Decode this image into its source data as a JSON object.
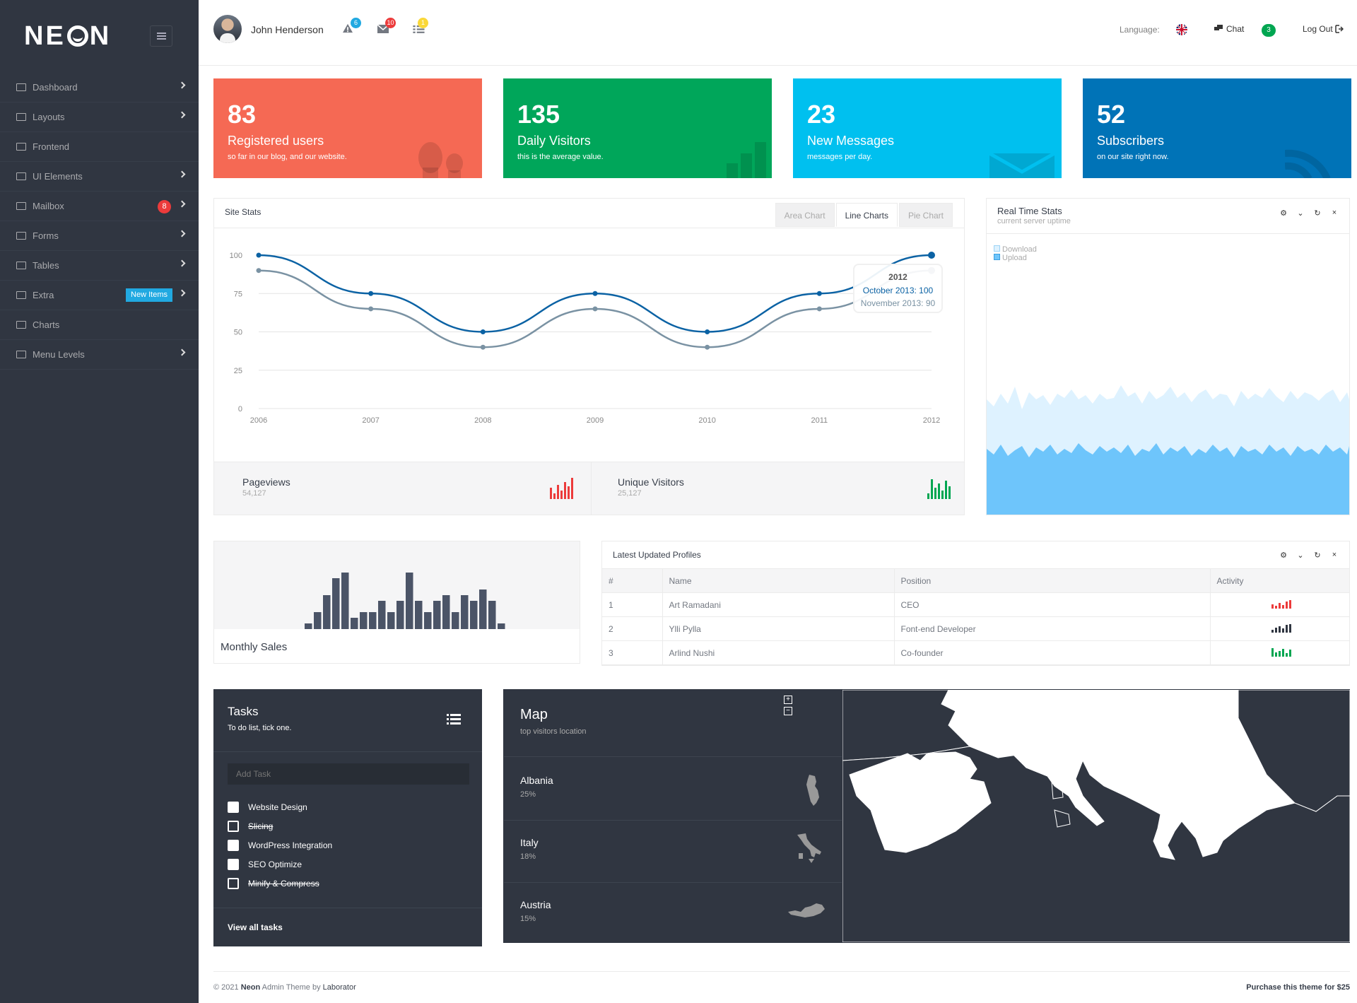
{
  "brand": {
    "name_pre": "NE",
    "name_post": "N"
  },
  "sidebar": {
    "items": [
      {
        "label": "Dashboard",
        "icon": "gauge-icon",
        "chevron": true
      },
      {
        "label": "Layouts",
        "icon": "grid-icon",
        "chevron": true
      },
      {
        "label": "Frontend",
        "icon": "monitor-icon",
        "chevron": false
      },
      {
        "label": "UI Elements",
        "icon": "document-icon",
        "chevron": true
      },
      {
        "label": "Mailbox",
        "icon": "mail-icon",
        "chevron": true,
        "badge": "8"
      },
      {
        "label": "Forms",
        "icon": "form-icon",
        "chevron": true
      },
      {
        "label": "Tables",
        "icon": "table-icon",
        "chevron": true
      },
      {
        "label": "Extra",
        "icon": "bag-icon",
        "chevron": true,
        "tag": "New Items"
      },
      {
        "label": "Charts",
        "icon": "bar-chart-icon",
        "chevron": false
      },
      {
        "label": "Menu Levels",
        "icon": "sitemap-icon",
        "chevron": true
      }
    ]
  },
  "topbar": {
    "user_name": "John Henderson",
    "notifications": [
      {
        "icon": "alert-icon",
        "count": "6",
        "color": "#21a9e1"
      },
      {
        "icon": "envelope-icon",
        "count": "10",
        "color": "#ec3b3b"
      },
      {
        "icon": "list-icon",
        "count": "1",
        "color": "#fad839"
      }
    ],
    "language_label": "Language:",
    "chat_label": "Chat",
    "chat_count": "3",
    "logout_label": "Log Out"
  },
  "tiles": [
    {
      "value": "83",
      "label": "Registered users",
      "sub": "so far in our blog, and our website.",
      "color": "#f56954",
      "icon": "users-icon"
    },
    {
      "value": "135",
      "label": "Daily Visitors",
      "sub": "this is the average value.",
      "color": "#00a65a",
      "icon": "chart-icon"
    },
    {
      "value": "23",
      "label": "New Messages",
      "sub": "messages per day.",
      "color": "#00c0ef",
      "icon": "mail-icon"
    },
    {
      "value": "52",
      "label": "Subscribers",
      "sub": "on our site right now.",
      "color": "#0073b7",
      "icon": "rss-icon"
    }
  ],
  "site_stats": {
    "title": "Site Stats",
    "tabs": [
      "Area Chart",
      "Line Charts",
      "Pie Chart"
    ],
    "active_tab": 1,
    "tooltip": {
      "title": "2012",
      "line1": "October 2013: 100",
      "line2": "November 2013: 90"
    },
    "footer": [
      {
        "label": "Pageviews",
        "value": "54,127",
        "color": "#ec3b3b"
      },
      {
        "label": "Unique Visitors",
        "value": "25,127",
        "color": "#00a651"
      }
    ]
  },
  "chart_data": {
    "type": "line",
    "x": [
      "2006",
      "2007",
      "2008",
      "2009",
      "2010",
      "2011",
      "2012"
    ],
    "series": [
      {
        "name": "October 2013",
        "values": [
          100,
          75,
          50,
          75,
          50,
          75,
          100
        ],
        "color": "#0b62a4"
      },
      {
        "name": "November 2013",
        "values": [
          90,
          65,
          40,
          65,
          40,
          65,
          90
        ],
        "color": "#7a92a3"
      }
    ],
    "yticks": [
      "0",
      "25",
      "50",
      "75",
      "100"
    ],
    "ylim": [
      0,
      100
    ],
    "grid": true
  },
  "realtime": {
    "title": "Real Time Stats",
    "subtitle": "current server uptime",
    "legend": [
      "Download",
      "Upload"
    ],
    "download_color": "#def2ff",
    "upload_color": "#6ec5fb"
  },
  "monthly_sales": {
    "label": "Monthly Sales",
    "values": [
      1,
      3,
      6,
      9,
      10,
      2,
      3,
      3,
      5,
      3,
      5,
      10,
      5,
      3,
      5,
      6,
      3,
      6,
      5,
      7,
      5,
      1
    ],
    "color": "#4b5467"
  },
  "profiles": {
    "title": "Latest Updated Profiles",
    "columns": [
      "#",
      "Name",
      "Position",
      "Activity"
    ],
    "rows": [
      {
        "num": "1",
        "name": "Art Ramadani",
        "position": "CEO",
        "color": "#ec3b3b"
      },
      {
        "num": "2",
        "name": "Ylli Pylla",
        "position": "Font-end Developer",
        "color": "#303641"
      },
      {
        "num": "3",
        "name": "Arlind Nushi",
        "position": "Co-founder",
        "color": "#00a651"
      }
    ]
  },
  "tasks": {
    "title": "Tasks",
    "subtitle": "To do list, tick one.",
    "placeholder": "Add Task",
    "items": [
      {
        "label": "Website Design",
        "done": false
      },
      {
        "label": "Slicing",
        "done": true
      },
      {
        "label": "WordPress Integration",
        "done": false
      },
      {
        "label": "SEO Optimize",
        "done": false
      },
      {
        "label": "Minify & Compress",
        "done": true
      }
    ],
    "view_all": "View all tasks"
  },
  "map": {
    "title": "Map",
    "subtitle": "top visitors location",
    "countries": [
      {
        "name": "Albania",
        "pct": "25%"
      },
      {
        "name": "Italy",
        "pct": "18%"
      },
      {
        "name": "Austria",
        "pct": "15%"
      }
    ],
    "zoom_in": "+",
    "zoom_out": "−"
  },
  "footer": {
    "copyright_pre": "© 2021 ",
    "brand": "Neon",
    "copyright_mid": " Admin Theme by ",
    "author": "Laborator",
    "purchase": "Purchase this theme for $25"
  }
}
